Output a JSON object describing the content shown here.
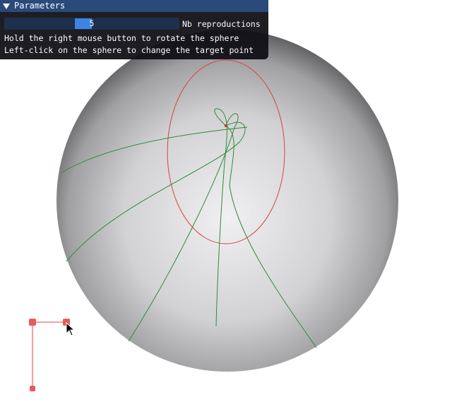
{
  "window": {
    "title": "Parameters"
  },
  "slider": {
    "value": "5",
    "label": "Nb reproductions"
  },
  "instructions": [
    "Hold the right mouse button to rotate the sphere",
    "Left-click on the sphere to change the target point"
  ],
  "colors": {
    "panel_bg": "#0f0f14",
    "titlebar": "#294a7a",
    "slider_bg": "#1d2f4d",
    "slider_grab": "#3d85e0",
    "trajectory": "#2e8b3a",
    "target_ellipse": "#d94040",
    "handle": "#e85a5a"
  },
  "icons": {
    "collapse": "triangle-down-icon",
    "cursor": "mouse-pointer-icon"
  }
}
